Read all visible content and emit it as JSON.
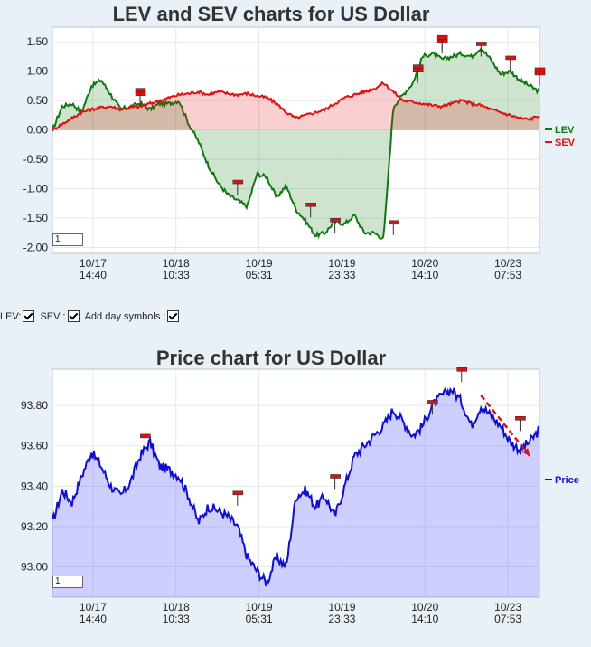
{
  "lev_chart": {
    "title": "LEV and SEV charts for US Dollar",
    "zoom_value": "1",
    "legend": [
      {
        "name": "LEV",
        "color": "#117711"
      },
      {
        "name": "SEV",
        "color": "#e01010"
      }
    ]
  },
  "controls": {
    "lev_label": "LEV:",
    "sev_label": "SEV :",
    "day_symbols_label": "Add day symbols :"
  },
  "price_chart": {
    "title": "Price chart for US Dollar",
    "zoom_value": "1",
    "legend": [
      {
        "name": "Price",
        "color": "#1010cc"
      }
    ]
  },
  "chart_data": [
    {
      "type": "line",
      "title": "LEV and SEV charts for US Dollar",
      "ylim": [
        -2.1,
        1.75
      ],
      "y_ticks": [
        "1.50",
        "1.00",
        "0.50",
        "0.00",
        "-0.50",
        "-1.00",
        "-1.50",
        "-2.00"
      ],
      "x_tick_labels": [
        {
          "date": "10/17",
          "time": "14:40"
        },
        {
          "date": "10/18",
          "time": "10:33"
        },
        {
          "date": "10/19",
          "time": "05:31"
        },
        {
          "date": "10/19",
          "time": "23:33"
        },
        {
          "date": "10/20",
          "time": "14:10"
        },
        {
          "date": "10/23",
          "time": "07:53"
        }
      ],
      "grid": true,
      "legend_position": "right",
      "x": [
        0,
        2,
        4,
        6,
        8,
        10,
        12,
        14,
        16,
        18,
        20,
        22,
        24,
        26,
        28,
        30,
        32,
        34,
        36,
        38,
        40,
        42,
        44,
        46,
        48,
        50,
        52,
        54,
        56,
        58,
        60,
        62,
        64,
        66,
        68,
        70,
        72,
        74,
        76,
        78,
        80,
        82,
        84,
        86,
        88,
        90,
        92,
        94,
        96,
        98,
        100
      ],
      "series": [
        {
          "name": "LEV",
          "color": "#117711",
          "values": [
            0.0,
            0.4,
            0.45,
            0.3,
            0.75,
            0.85,
            0.6,
            0.35,
            0.4,
            0.45,
            0.35,
            0.45,
            0.45,
            0.5,
            0.1,
            -0.2,
            -0.6,
            -0.9,
            -1.1,
            -1.2,
            -1.3,
            -0.75,
            -0.8,
            -1.15,
            -0.95,
            -1.35,
            -1.55,
            -1.8,
            -1.75,
            -1.55,
            -1.6,
            -1.45,
            -1.75,
            -1.75,
            -1.85,
            0.4,
            0.6,
            0.8,
            1.25,
            1.3,
            1.2,
            1.25,
            1.3,
            1.25,
            1.4,
            1.2,
            0.95,
            1.0,
            0.85,
            0.75,
            0.65
          ]
        },
        {
          "name": "SEV",
          "color": "#e01010",
          "values": [
            0.0,
            0.1,
            0.2,
            0.3,
            0.35,
            0.38,
            0.4,
            0.35,
            0.38,
            0.4,
            0.45,
            0.5,
            0.55,
            0.6,
            0.62,
            0.65,
            0.6,
            0.65,
            0.62,
            0.6,
            0.62,
            0.58,
            0.55,
            0.45,
            0.3,
            0.2,
            0.25,
            0.3,
            0.35,
            0.45,
            0.55,
            0.6,
            0.65,
            0.7,
            0.8,
            0.65,
            0.5,
            0.48,
            0.45,
            0.42,
            0.4,
            0.45,
            0.5,
            0.45,
            0.42,
            0.35,
            0.3,
            0.25,
            0.2,
            0.18,
            0.25
          ]
        }
      ],
      "markers_x": [
        18,
        18,
        38,
        53,
        58,
        70,
        75,
        75,
        80,
        80,
        88,
        94,
        100,
        100
      ]
    },
    {
      "type": "area",
      "title": "Price chart for US Dollar",
      "ylim": [
        92.85,
        93.98
      ],
      "y_ticks": [
        "93.80",
        "93.60",
        "93.40",
        "93.20",
        "93.00"
      ],
      "x_tick_labels": [
        {
          "date": "10/17",
          "time": "14:40"
        },
        {
          "date": "10/18",
          "time": "10:33"
        },
        {
          "date": "10/19",
          "time": "05:31"
        },
        {
          "date": "10/19",
          "time": "23:33"
        },
        {
          "date": "10/20",
          "time": "14:10"
        },
        {
          "date": "10/23",
          "time": "07:53"
        }
      ],
      "grid": true,
      "legend_position": "right",
      "x": [
        0,
        2,
        4,
        6,
        8,
        10,
        12,
        14,
        16,
        18,
        20,
        22,
        24,
        26,
        28,
        30,
        32,
        34,
        36,
        38,
        40,
        42,
        44,
        46,
        48,
        50,
        52,
        54,
        56,
        58,
        60,
        62,
        64,
        66,
        68,
        70,
        72,
        74,
        76,
        78,
        80,
        82,
        84,
        86,
        88,
        90,
        92,
        94,
        96,
        98,
        100
      ],
      "series": [
        {
          "name": "Price",
          "color": "#1010cc",
          "values": [
            93.22,
            93.38,
            93.32,
            93.45,
            93.57,
            93.5,
            93.4,
            93.35,
            93.42,
            93.55,
            93.62,
            93.5,
            93.48,
            93.45,
            93.35,
            93.22,
            93.3,
            93.28,
            93.25,
            93.2,
            93.05,
            92.98,
            92.92,
            93.05,
            93.0,
            93.35,
            93.38,
            93.3,
            93.35,
            93.25,
            93.4,
            93.55,
            93.6,
            93.65,
            93.7,
            93.78,
            93.72,
            93.65,
            93.7,
            93.8,
            93.85,
            93.88,
            93.82,
            93.7,
            93.8,
            93.75,
            93.7,
            93.62,
            93.58,
            93.62,
            93.68
          ]
        }
      ],
      "markers_x": [
        19,
        38,
        58,
        78,
        84,
        96
      ],
      "trend_arrow": {
        "from_x": 88,
        "from_y": 93.85,
        "to_x": 98,
        "to_y": 93.55
      }
    }
  ]
}
